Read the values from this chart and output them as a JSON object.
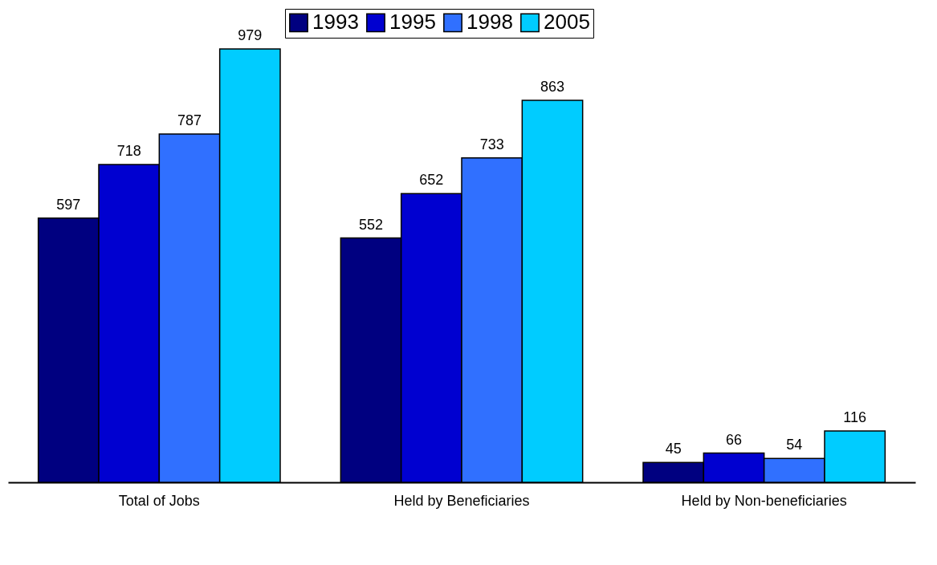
{
  "chart_data": {
    "type": "bar",
    "categories": [
      "Total of Jobs",
      "Held by Beneficiaries",
      "Held by Non-beneficiaries"
    ],
    "series": [
      {
        "name": "1993",
        "color": "#000080",
        "values": [
          597,
          552,
          45
        ]
      },
      {
        "name": "1995",
        "color": "#0000d0",
        "values": [
          718,
          652,
          66
        ]
      },
      {
        "name": "1998",
        "color": "#3070ff",
        "values": [
          787,
          733,
          54
        ]
      },
      {
        "name": "2005",
        "color": "#00ccff",
        "values": [
          979,
          863,
          116
        ]
      }
    ],
    "data_labels": true,
    "legend": "top",
    "grid": false
  }
}
